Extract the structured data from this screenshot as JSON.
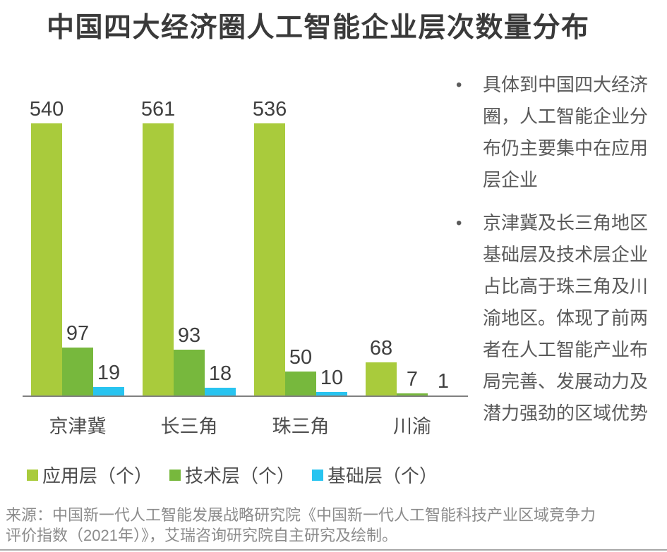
{
  "title": "中国四大经济圈人工智能企业层次数量分布",
  "chart_data": {
    "type": "bar",
    "categories": [
      "京津冀",
      "长三角",
      "珠三角",
      "川渝"
    ],
    "series": [
      {
        "name": "应用层（个）",
        "color": "#a9cb3c",
        "values": [
          540,
          561,
          536,
          68
        ]
      },
      {
        "name": "技术层（个）",
        "color": "#77b83d",
        "values": [
          97,
          93,
          50,
          7
        ]
      },
      {
        "name": "基础层（个）",
        "color": "#28c4f0",
        "values": [
          19,
          18,
          10,
          1
        ]
      }
    ],
    "title": "中国四大经济圈人工智能企业层次数量分布",
    "xlabel": "",
    "ylabel": "",
    "ylim": [
      0,
      580
    ],
    "grid": false,
    "legend_position": "bottom",
    "value_labels_shown": true
  },
  "insights": {
    "bullet_char": "•",
    "bullets": [
      {
        "text": "具体到中国四大经济\n圈，人工智能企业分\n布仍主要集中在应用\n层企业"
      },
      {
        "text": "京津冀及长三角地区\n基础层及技术层企业\n占比高于珠三角及川\n渝地区。体现了前两\n者在人工智能产业布\n局完善、发展动力及\n潜力强劲的区域优势"
      }
    ]
  },
  "source": {
    "text": "来源：中国新一代人工智能发展战略研究院《中国新一代人工智能科技产业区域竞争力\n评价指数（2021年）》，艾瑞咨询研究院自主研究及绘制。"
  }
}
